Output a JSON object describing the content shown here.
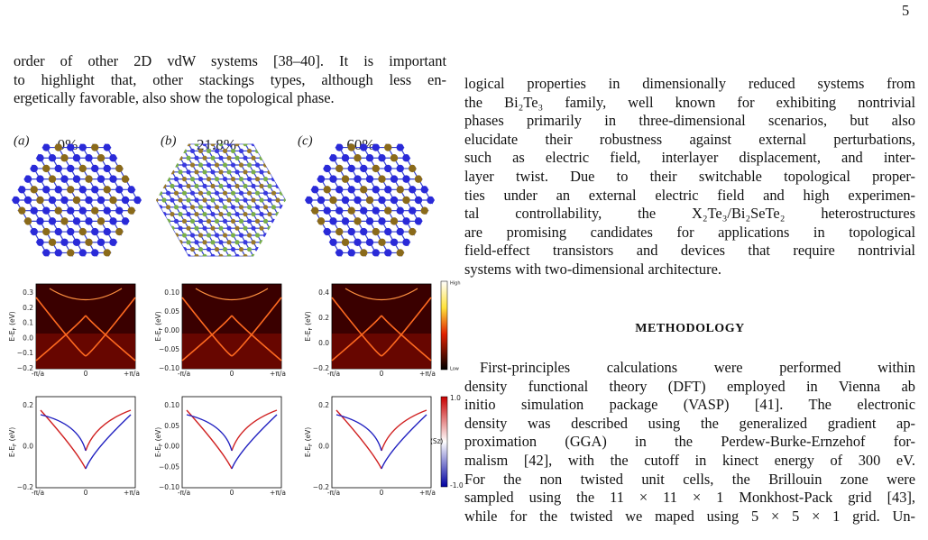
{
  "page_number": "5",
  "left_text": [
    "order of other 2D vdW systems [38–40]. It is important",
    "to highlight that, other stackings types, although less en-",
    "ergetically favorable, also show the topological phase."
  ],
  "figure": {
    "panels": [
      {
        "label": "(a)",
        "percent": "0%",
        "band_yticks": [
          "0.3",
          "0.2",
          "0.1",
          "0.0",
          "−0.1",
          "−0.2"
        ],
        "spin_yticks": [
          "0.2",
          "0.0",
          "−0.2"
        ]
      },
      {
        "label": "(b)",
        "percent": "21.8%",
        "band_yticks": [
          "0.10",
          "0.05",
          "0.00",
          "−0.05",
          "−0.10"
        ],
        "spin_yticks": [
          "0.10",
          "0.05",
          "0.00",
          "−0.05",
          "−0.10"
        ]
      },
      {
        "label": "(c)",
        "percent": "60%",
        "band_yticks": [
          "0.4",
          "0.2",
          "0.0",
          "−0.2"
        ],
        "spin_yticks": [
          "0.2",
          "0.0",
          "−0.2"
        ]
      }
    ],
    "xticks": [
      "-π/a",
      "0",
      "+π/a"
    ],
    "ylabel": "E-EF (eV)",
    "band_colorbar": [
      "High",
      "Low"
    ],
    "spin_colorbar": [
      "1.0",
      "⟨Sz⟩",
      "-1.0"
    ]
  },
  "right_text": [
    "logical properties in dimensionally reduced systems from",
    "the Bi₂Te₃ family, well known for exhibiting nontrivial",
    "phases primarily in three-dimensional scenarios, but also",
    "elucidate their robustness against external perturbations,",
    "such as electric field, interlayer displacement, and inter-",
    "layer twist. Due to their switchable topological proper-",
    "ties under an external electric field and high experimen-",
    "tal controllability, the X₂Te₃/Bi₂SeTe₂ heterostructures",
    "are promising candidates for applications in topological",
    "field-effect transistors and devices that require nontrivial",
    "systems with two-dimensional architecture."
  ],
  "section_title": "METHODOLOGY",
  "methods_text": [
    "First-principles calculations were performed within",
    "density functional theory (DFT) employed in Vienna ab",
    "initio simulation package (VASP) [41]. The electronic",
    "density was described using the generalized gradient ap-",
    "proximation (GGA) in the Perdew-Burke-Ernzehof for-",
    "malism [42], with the cutoff in kinect energy of 300 eV.",
    "For the non twisted unit cells, the Brillouin zone were",
    "sampled using the 11 × 11 × 1 Monkhost-Pack grid [43],",
    "while for the twisted we maped using 5 × 5 × 1 grid. Un-"
  ]
}
